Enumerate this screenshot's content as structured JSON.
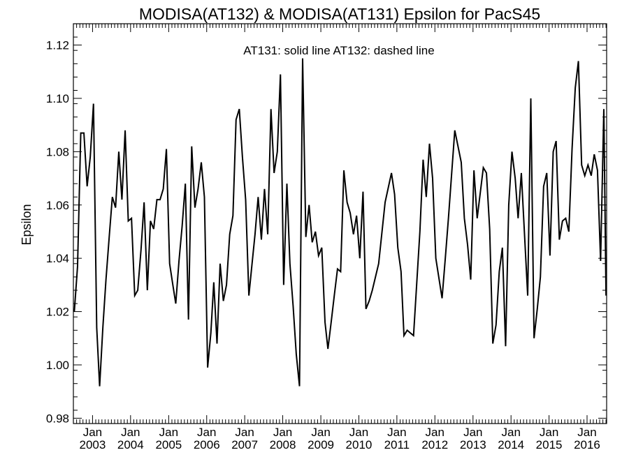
{
  "chart_data": {
    "type": "line",
    "title": "MODISA(AT132) & MODISA(AT131)  Epsilon for PacS45",
    "annotation": "AT131: solid line   AT132: dashed line",
    "xlabel": "",
    "ylabel": "Epsilon",
    "ylim": [
      0.978,
      1.128
    ],
    "xlim": [
      "2002-07-01",
      "2016-07-07"
    ],
    "yticks": [
      0.98,
      1.0,
      1.02,
      1.04,
      1.06,
      1.08,
      1.1,
      1.12
    ],
    "ytick_labels": [
      "0.98",
      "1.00",
      "1.02",
      "1.04",
      "1.06",
      "1.08",
      "1.10",
      "1.12"
    ],
    "xticks": [
      "2003-01-01",
      "2004-01-01",
      "2005-01-01",
      "2006-01-01",
      "2007-01-01",
      "2008-01-01",
      "2009-01-01",
      "2010-01-01",
      "2011-01-01",
      "2012-01-01",
      "2013-01-01",
      "2014-01-01",
      "2015-01-01",
      "2016-01-01"
    ],
    "xtick_month_label": "Jan",
    "xtick_year_labels": [
      "2003",
      "2004",
      "2005",
      "2006",
      "2007",
      "2008",
      "2009",
      "2010",
      "2011",
      "2012",
      "2013",
      "2014",
      "2015",
      "2016"
    ],
    "series": [
      {
        "name": "AT131",
        "style": "solid",
        "color": "#000000",
        "x": [
          "2002-07-10",
          "2002-08-10",
          "2002-09-10",
          "2002-10-10",
          "2002-11-10",
          "2002-12-10",
          "2003-01-10",
          "2003-02-10",
          "2003-03-10",
          "2003-04-10",
          "2003-05-10",
          "2003-06-10",
          "2003-07-10",
          "2003-08-10",
          "2003-09-10",
          "2003-10-10",
          "2003-11-10",
          "2003-12-10",
          "2004-01-10",
          "2004-02-10",
          "2004-03-10",
          "2004-04-10",
          "2004-05-10",
          "2004-06-10",
          "2004-07-10",
          "2004-08-10",
          "2004-09-10",
          "2004-10-10",
          "2004-11-10",
          "2004-12-10",
          "2005-01-10",
          "2005-02-10",
          "2005-03-10",
          "2005-04-10",
          "2005-05-10",
          "2005-06-10",
          "2005-07-10",
          "2005-08-10",
          "2005-09-10",
          "2005-10-10",
          "2005-11-10",
          "2005-12-10",
          "2006-01-10",
          "2006-02-10",
          "2006-03-10",
          "2006-04-10",
          "2006-05-10",
          "2006-06-10",
          "2006-07-10",
          "2006-08-10",
          "2006-09-10",
          "2006-10-10",
          "2006-11-10",
          "2006-12-10",
          "2007-01-10",
          "2007-02-10",
          "2007-03-10",
          "2007-04-10",
          "2007-05-10",
          "2007-06-10",
          "2007-07-10",
          "2007-08-10",
          "2007-09-10",
          "2007-10-10",
          "2007-11-10",
          "2007-12-10",
          "2008-01-10",
          "2008-02-10",
          "2008-03-10",
          "2008-04-10",
          "2008-05-10",
          "2008-06-10",
          "2008-07-10",
          "2008-08-10",
          "2008-09-10",
          "2008-10-10",
          "2008-11-10",
          "2008-12-10",
          "2009-01-10",
          "2009-02-10",
          "2009-03-10",
          "2009-04-10",
          "2009-05-10",
          "2009-06-10",
          "2009-07-10",
          "2009-08-10",
          "2009-09-10",
          "2009-10-10",
          "2009-11-10",
          "2009-12-10",
          "2010-01-10",
          "2010-02-10",
          "2010-03-10",
          "2010-04-10",
          "2010-05-10",
          "2010-07-10",
          "2010-09-10",
          "2010-11-10",
          "2010-12-10",
          "2011-01-10",
          "2011-02-10",
          "2011-03-10",
          "2011-04-10",
          "2011-05-10",
          "2011-06-10",
          "2011-08-10",
          "2011-09-10",
          "2011-10-10",
          "2011-11-10",
          "2011-12-10",
          "2012-01-10",
          "2012-03-10",
          "2012-04-10",
          "2012-05-10",
          "2012-07-10",
          "2012-09-10",
          "2012-10-10",
          "2012-11-10",
          "2012-12-10",
          "2013-01-10",
          "2013-02-10",
          "2013-04-10",
          "2013-05-10",
          "2013-06-10",
          "2013-07-10",
          "2013-08-10",
          "2013-09-10",
          "2013-10-10",
          "2013-11-10",
          "2013-12-10",
          "2014-01-10",
          "2014-02-10",
          "2014-03-10",
          "2014-04-10",
          "2014-06-10",
          "2014-07-10",
          "2014-08-10",
          "2014-09-10",
          "2014-10-10",
          "2014-11-10",
          "2014-12-10",
          "2015-01-10",
          "2015-02-10",
          "2015-03-10",
          "2015-04-10",
          "2015-05-10",
          "2015-06-10",
          "2015-07-10",
          "2015-08-10",
          "2015-09-10",
          "2015-10-10",
          "2015-11-10",
          "2015-12-10",
          "2016-01-10",
          "2016-02-10",
          "2016-03-10",
          "2016-04-10",
          "2016-05-10",
          "2016-06-10",
          "2016-07-01"
        ],
        "y": [
          1.02,
          1.037,
          1.087,
          1.087,
          1.067,
          1.078,
          1.098,
          1.014,
          0.992,
          1.014,
          1.032,
          1.048,
          1.063,
          1.059,
          1.08,
          1.062,
          1.088,
          1.054,
          1.055,
          1.026,
          1.028,
          1.043,
          1.061,
          1.028,
          1.054,
          1.051,
          1.062,
          1.062,
          1.066,
          1.081,
          1.038,
          1.03,
          1.023,
          1.039,
          1.052,
          1.068,
          1.017,
          1.082,
          1.059,
          1.066,
          1.076,
          1.063,
          0.999,
          1.012,
          1.031,
          1.008,
          1.038,
          1.024,
          1.03,
          1.049,
          1.056,
          1.092,
          1.096,
          1.078,
          1.062,
          1.026,
          1.037,
          1.049,
          1.063,
          1.047,
          1.066,
          1.049,
          1.096,
          1.072,
          1.08,
          1.109,
          1.03,
          1.068,
          1.038,
          1.022,
          1.004,
          0.992,
          1.115,
          1.048,
          1.06,
          1.046,
          1.05,
          1.041,
          1.044,
          1.016,
          1.006,
          1.016,
          1.026,
          1.036,
          1.035,
          1.073,
          1.061,
          1.057,
          1.049,
          1.056,
          1.04,
          1.065,
          1.021,
          1.024,
          1.028,
          1.038,
          1.061,
          1.072,
          1.064,
          1.044,
          1.035,
          1.011,
          1.013,
          1.012,
          1.011,
          1.05,
          1.077,
          1.063,
          1.083,
          1.07,
          1.04,
          1.025,
          1.04,
          1.055,
          1.088,
          1.076,
          1.055,
          1.045,
          1.032,
          1.073,
          1.055,
          1.074,
          1.072,
          1.051,
          1.008,
          1.015,
          1.035,
          1.044,
          1.007,
          1.06,
          1.08,
          1.07,
          1.055,
          1.072,
          1.026,
          1.1,
          1.01,
          1.021,
          1.033,
          1.067,
          1.072,
          1.041,
          1.08,
          1.084,
          1.047,
          1.054,
          1.055,
          1.05,
          1.081,
          1.104,
          1.114,
          1.075,
          1.071,
          1.075,
          1.071,
          1.079,
          1.073,
          1.039,
          1.096,
          1.026
        ]
      }
    ]
  }
}
